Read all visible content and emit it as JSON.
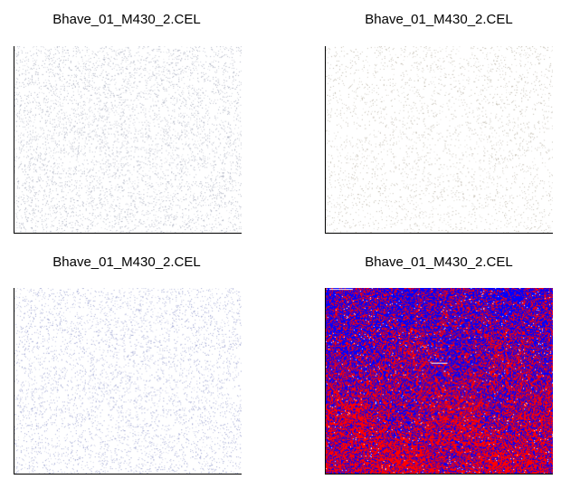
{
  "panels": [
    {
      "title": "Bhave_01_M430_2.CEL",
      "image": "faint-grey-speckle"
    },
    {
      "title": "Bhave_01_M430_2.CEL",
      "image": "faint-brown-speckle"
    },
    {
      "title": "Bhave_01_M430_2.CEL",
      "image": "faint-blue-grey-speckle"
    },
    {
      "title": "Bhave_01_M430_2.CEL",
      "image": "red-blue-speckle"
    }
  ],
  "colors": {
    "axis": "#000000",
    "background": "#ffffff",
    "speckle_grey": "#9aa0b4",
    "speckle_brown": "#b0a898",
    "speckle_blue": "#8890c8",
    "residual_red": "#ff0000",
    "residual_blue": "#0000ff"
  }
}
